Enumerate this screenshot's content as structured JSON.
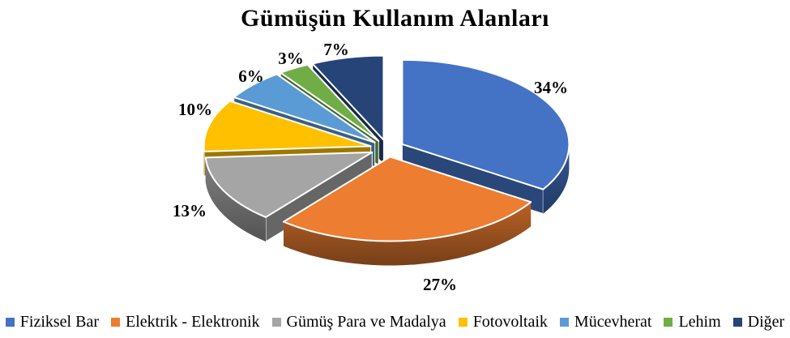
{
  "title": "Gümüşün Kullanım Alanları",
  "background_color": "#FFFFFF",
  "chart_data": {
    "type": "pie",
    "style": "3d-exploded-pie",
    "title": "Gümüşün Kullanım Alanları",
    "categories": [
      "Fiziksel Bar",
      "Elektrik - Elektronik",
      "Gümüş Para ve Madalya",
      "Fotovoltaik",
      "Mücevherat",
      "Lehim",
      "Diğer"
    ],
    "values": [
      34,
      27,
      13,
      10,
      6,
      3,
      7
    ],
    "unit": "%",
    "data_labels": [
      "34%",
      "27%",
      "13%",
      "10%",
      "6%",
      "3%",
      "7%"
    ],
    "colors": [
      "#4472C4",
      "#ED7D31",
      "#A5A5A5",
      "#FFC000",
      "#5B9BD5",
      "#70AD47",
      "#264478"
    ],
    "start_angle_deg": -90,
    "direction": "clockwise",
    "legend_position": "bottom",
    "label_color": "#000000",
    "title_color": "#000000"
  }
}
